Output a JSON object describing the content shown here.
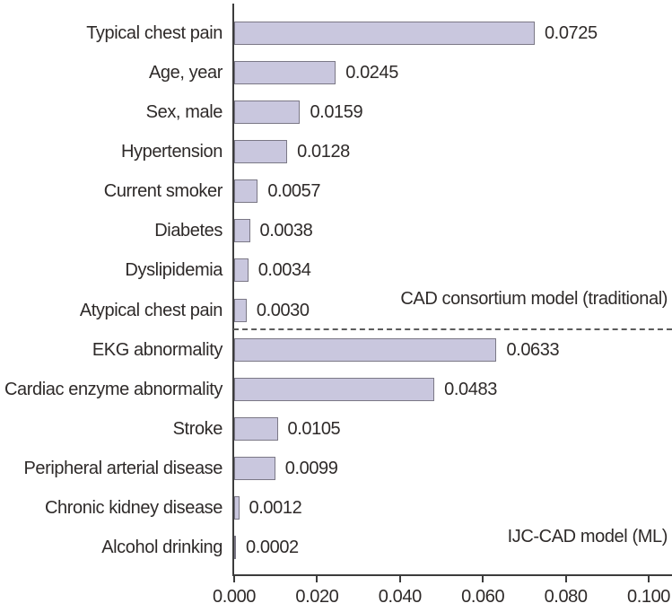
{
  "chart_data": {
    "type": "bar",
    "orientation": "horizontal",
    "title": "",
    "xlabel": "",
    "ylabel": "",
    "xlim": [
      0,
      0.105
    ],
    "grid": false,
    "legend_position": "none",
    "categories": [
      "Typical chest pain",
      "Age, year",
      "Sex, male",
      "Hypertension",
      "Current smoker",
      "Diabetes",
      "Dyslipidemia",
      "Atypical chest pain",
      "EKG abnormality",
      "Cardiac enzyme abnormality",
      "Stroke",
      "Peripheral arterial disease",
      "Chronic kidney disease",
      "Alcohol drinking"
    ],
    "values": [
      0.0725,
      0.0245,
      0.0159,
      0.0128,
      0.0057,
      0.0038,
      0.0034,
      0.003,
      0.0633,
      0.0483,
      0.0105,
      0.0099,
      0.0012,
      0.0002
    ],
    "value_labels": [
      "0.0725",
      "0.0245",
      "0.0159",
      "0.0128",
      "0.0057",
      "0.0038",
      "0.0034",
      "0.0030",
      "0.0633",
      "0.0483",
      "0.0105",
      "0.0099",
      "0.0012",
      "0.0002"
    ],
    "sections": [
      {
        "label": "CAD consortium model (traditional)",
        "row_indexes": [
          0,
          1,
          2,
          3,
          4,
          5,
          6,
          7
        ]
      },
      {
        "label": "IJC-CAD model (ML)",
        "row_indexes": [
          8,
          9,
          10,
          11,
          12,
          13
        ]
      }
    ],
    "x_ticks": [
      {
        "value": 0.0,
        "label": "0.000"
      },
      {
        "value": 0.02,
        "label": "0.020"
      },
      {
        "value": 0.04,
        "label": "0.040"
      },
      {
        "value": 0.06,
        "label": "0.060"
      },
      {
        "value": 0.08,
        "label": "0.080"
      },
      {
        "value": 0.1,
        "label": "0.100"
      }
    ],
    "colors": {
      "bar_fill": "#c9c7de",
      "bar_border": "#7b7886",
      "axis": "#3c3c3c",
      "text": "#2e2a29",
      "separator": "#5c5c5c",
      "background": "#ffffff"
    }
  }
}
